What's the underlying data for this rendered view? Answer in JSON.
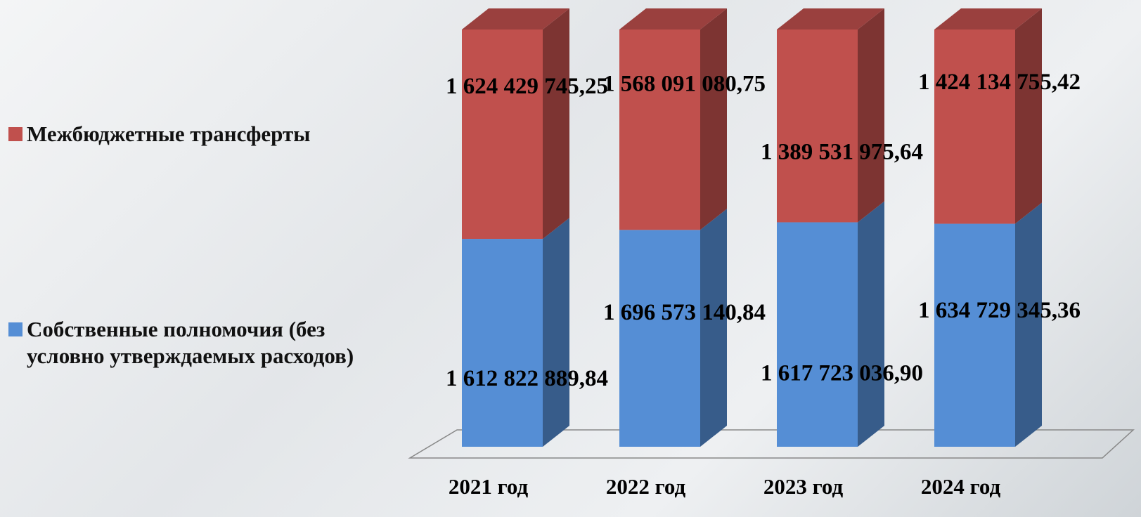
{
  "chart_data": {
    "type": "bar",
    "stacking": "percent",
    "categories": [
      "2021 год",
      "2022 год",
      "2023 год",
      "2024 год"
    ],
    "series": [
      {
        "name": "Собственные полномочия (без условно утверждаемых расходов)",
        "color": "#558ed5",
        "values": [
          1612822889.84,
          1696573140.84,
          1617723036.9,
          1634729345.36
        ],
        "value_labels": [
          "1 612 822 889,84",
          "1 696 573 140,84",
          "1 617 723 036,90",
          "1 634 729 345,36"
        ]
      },
      {
        "name": "Межбюджетные трансферты",
        "color": "#c0504d",
        "values": [
          1624429745.25,
          1568091080.75,
          1389531975.64,
          1424134755.42
        ],
        "value_labels": [
          "1 624 429 745,25",
          "1 568 091 080,75",
          "1 389 531 975,64",
          "1 424 134 755,42"
        ]
      }
    ],
    "legend": "left"
  }
}
